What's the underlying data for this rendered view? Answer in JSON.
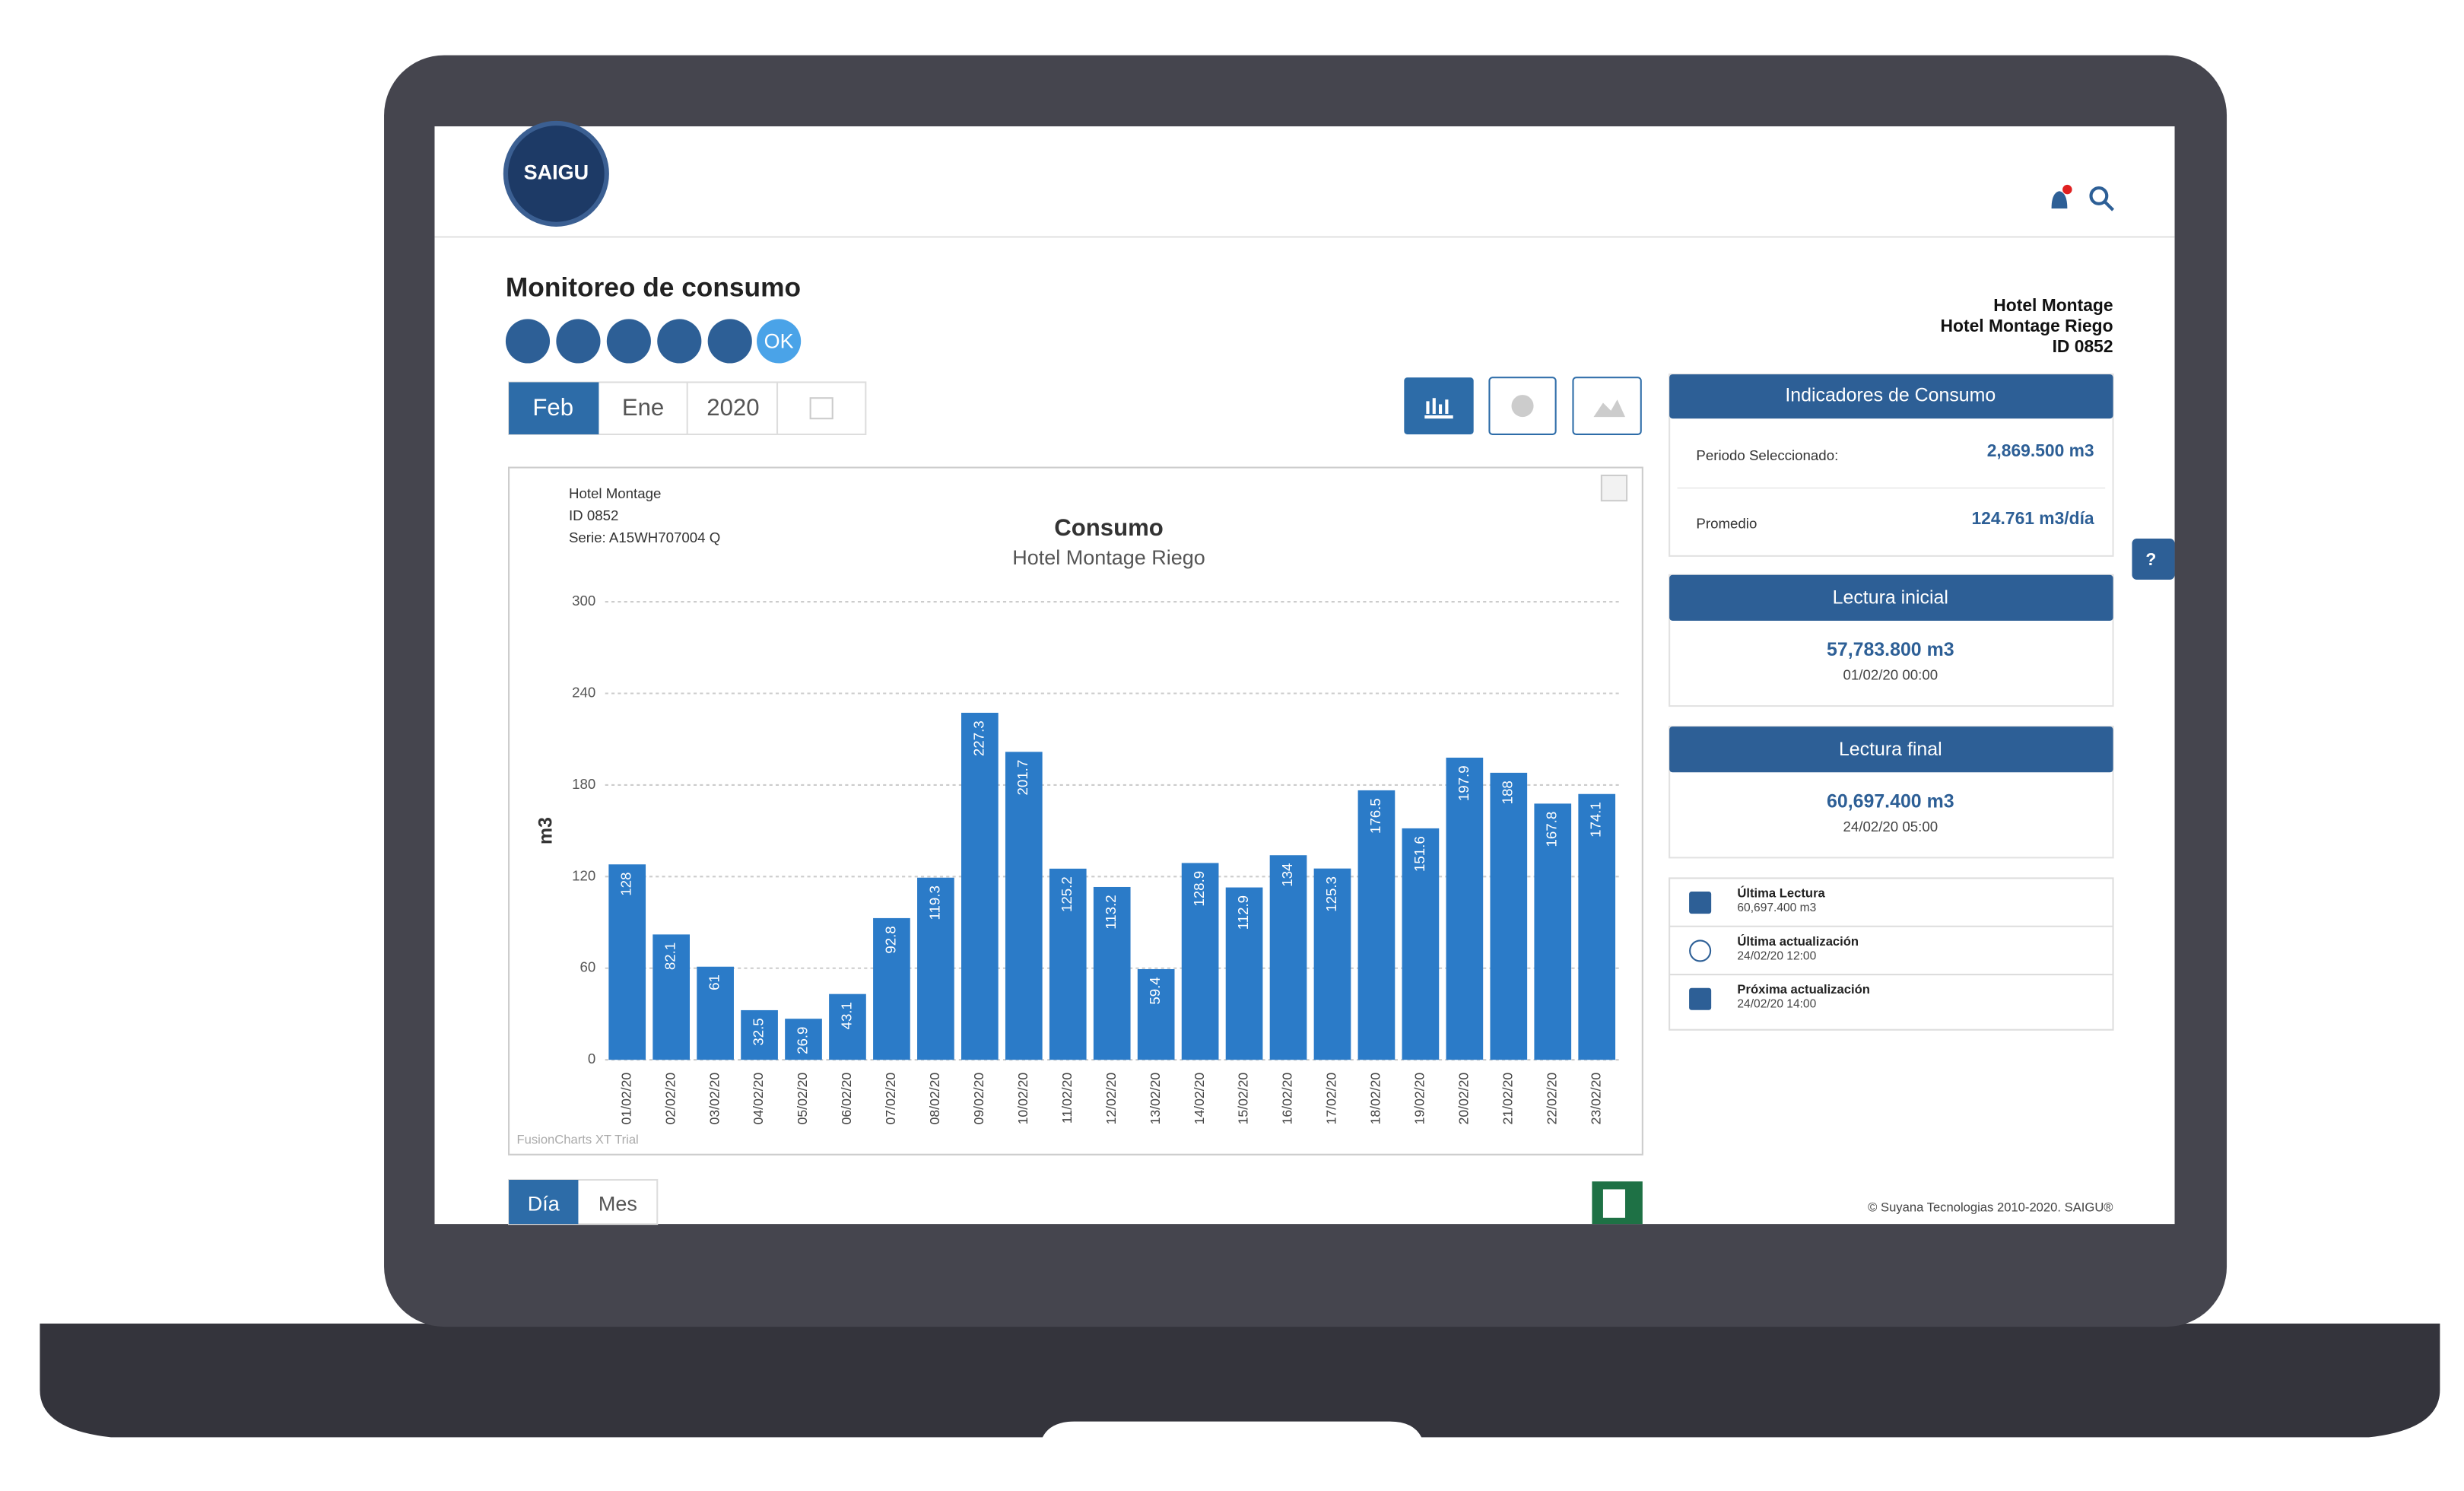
{
  "header": {
    "logo": "SAIGU"
  },
  "page": {
    "title": "Monitoreo de consumo",
    "status_badge": "OK",
    "period_tabs": [
      "Feb",
      "Ene",
      "2020"
    ],
    "view_tabs": [
      "Día",
      "Mes"
    ],
    "help": "?",
    "footer": "© Suyana Tecnologias 2010-2020. SAIGU®"
  },
  "site": {
    "name": "Hotel Montage",
    "meter": "Hotel Montage Riego",
    "id": "ID 0852"
  },
  "indicators": {
    "title": "Indicadores de Consumo",
    "rows": [
      {
        "label": "Periodo Seleccionado:",
        "value": "2,869.500 m3"
      },
      {
        "label": "Promedio",
        "value": "124.761 m3/día"
      }
    ]
  },
  "initial_reading": {
    "title": "Lectura inicial",
    "value": "57,783.800 m3",
    "date": "01/02/20 00:00"
  },
  "final_reading": {
    "title": "Lectura final",
    "value": "60,697.400 m3",
    "date": "24/02/20 05:00"
  },
  "status": [
    {
      "label": "Última Lectura",
      "value": "60,697.400 m3"
    },
    {
      "label": "Última actualización",
      "value": "24/02/20 12:00"
    },
    {
      "label": "Próxima actualización",
      "value": "24/02/20 14:00"
    }
  ],
  "chart": {
    "type": "bar",
    "title": "Consumo",
    "subtitle": "Hotel Montage Riego",
    "info": [
      "Hotel Montage",
      "ID 0852",
      "Serie: A15WH707004 Q"
    ],
    "y_label": "m3",
    "watermark": "FusionCharts XT Trial",
    "categories": [
      "01/02/20",
      "02/02/20",
      "03/02/20",
      "04/02/20",
      "05/02/20",
      "06/02/20",
      "07/02/20",
      "08/02/20",
      "09/02/20",
      "10/02/20",
      "11/02/20",
      "12/02/20",
      "13/02/20",
      "14/02/20",
      "15/02/20",
      "16/02/20",
      "17/02/20",
      "18/02/20",
      "19/02/20",
      "20/02/20",
      "21/02/20",
      "22/02/20",
      "23/02/20"
    ],
    "values": [
      128,
      82.1,
      61,
      32.5,
      26.9,
      43.1,
      92.8,
      119.3,
      227.3,
      201.7,
      125.2,
      113.2,
      59.4,
      128.9,
      112.9,
      134,
      125.3,
      176.5,
      151.6,
      197.9,
      188,
      167.8,
      174.1
    ],
    "color": "#2b7bc8",
    "ylim": [
      0,
      300
    ],
    "yticks": [
      0,
      60,
      120,
      180,
      240,
      300
    ],
    "grid": true
  }
}
